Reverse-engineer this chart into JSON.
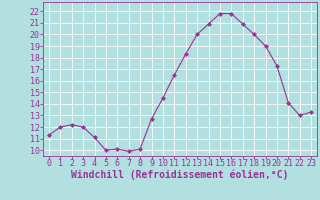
{
  "x": [
    0,
    1,
    2,
    3,
    4,
    5,
    6,
    7,
    8,
    9,
    10,
    11,
    12,
    13,
    14,
    15,
    16,
    17,
    18,
    19,
    20,
    21,
    22,
    23
  ],
  "y": [
    11.3,
    12.0,
    12.2,
    12.0,
    11.1,
    10.0,
    10.1,
    9.9,
    10.1,
    12.7,
    14.5,
    16.5,
    18.3,
    20.0,
    20.9,
    21.8,
    21.8,
    20.9,
    20.0,
    19.0,
    17.3,
    14.1,
    13.0,
    13.3
  ],
  "line_color": "#993399",
  "marker": "D",
  "marker_size": 2.0,
  "bg_color": "#b2dfdf",
  "grid_color": "#ffffff",
  "xlabel": "Windchill (Refroidissement éolien,°C)",
  "xlabel_color": "#993399",
  "tick_color": "#993399",
  "spine_color": "#993399",
  "ylim": [
    9.5,
    22.8
  ],
  "xlim": [
    -0.5,
    23.5
  ],
  "yticks": [
    10,
    11,
    12,
    13,
    14,
    15,
    16,
    17,
    18,
    19,
    20,
    21,
    22
  ],
  "xticks": [
    0,
    1,
    2,
    3,
    4,
    5,
    6,
    7,
    8,
    9,
    10,
    11,
    12,
    13,
    14,
    15,
    16,
    17,
    18,
    19,
    20,
    21,
    22,
    23
  ],
  "tick_fontsize": 6.0,
  "xlabel_fontsize": 7.0,
  "linewidth": 0.8
}
